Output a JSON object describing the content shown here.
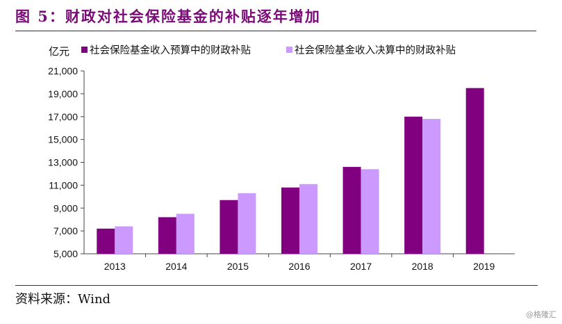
{
  "header": {
    "title": "图 5：财政对社会保险基金的补贴逐年增加"
  },
  "footer": {
    "source": "资料来源：Wind",
    "watermark": "@格隆汇"
  },
  "chart_data": {
    "type": "bar",
    "title": "图 5：财政对社会保险基金的补贴逐年增加",
    "unit": "亿元",
    "categories": [
      "2013",
      "2014",
      "2015",
      "2016",
      "2017",
      "2018",
      "2019"
    ],
    "series": [
      {
        "name": "社会保险基金收入预算中的财政补贴",
        "color": "#800080",
        "values": [
          7200,
          8200,
          9700,
          10800,
          12600,
          17000,
          19500
        ]
      },
      {
        "name": "社会保险基金收入决算中的财政补贴",
        "color": "#cc99ff",
        "values": [
          7400,
          8500,
          10300,
          11100,
          12400,
          16800,
          null
        ]
      }
    ],
    "ylim": [
      5000,
      21000
    ],
    "yticks": [
      5000,
      7000,
      9000,
      11000,
      13000,
      15000,
      17000,
      19000,
      21000
    ],
    "ytick_labels": [
      "5,000",
      "7,000",
      "9,000",
      "11,000",
      "13,000",
      "15,000",
      "17,000",
      "19,000",
      "21,000"
    ],
    "legend_position": "top",
    "grid": false
  }
}
